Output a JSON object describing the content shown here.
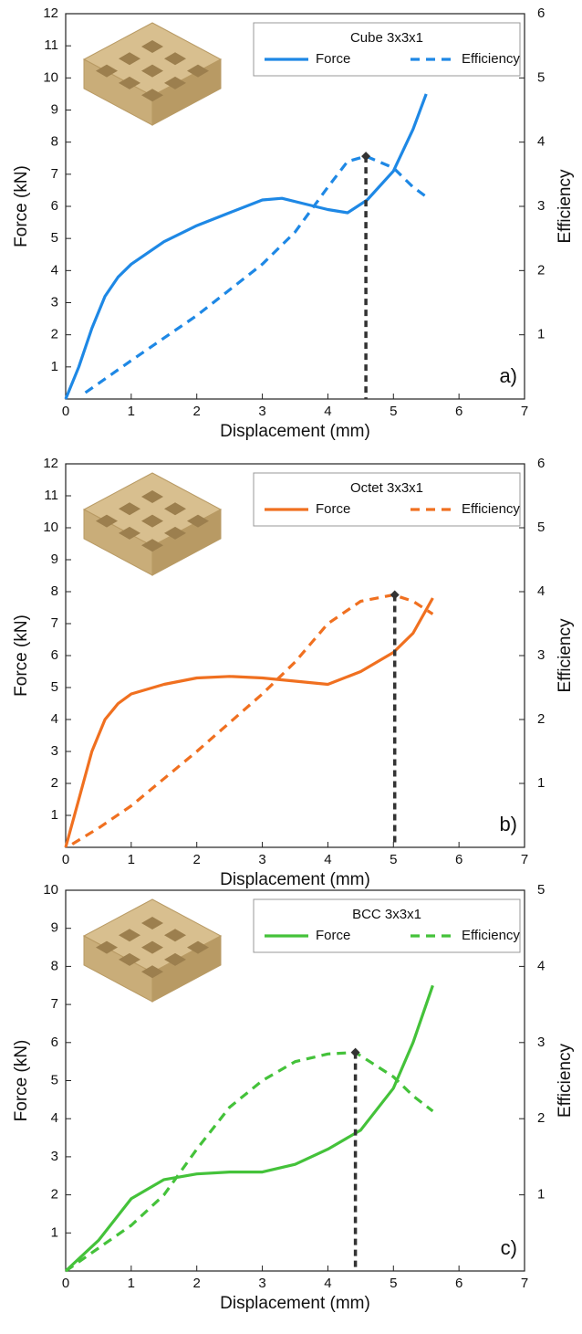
{
  "chart_data": [
    {
      "type": "line",
      "legend_title": "Cube 3x3x1",
      "label": "a)",
      "xlabel": "Displacement (mm)",
      "ylabel": "Force (kN)",
      "y2label": "Efficiency",
      "xlim": [
        0,
        7
      ],
      "xticks": [
        0,
        1,
        2,
        3,
        4,
        5,
        6,
        7
      ],
      "ylim": [
        0,
        12
      ],
      "yticks": [
        1,
        2,
        3,
        4,
        5,
        6,
        7,
        8,
        9,
        10,
        11,
        12
      ],
      "y2lim": [
        0,
        6
      ],
      "y2ticks": [
        1,
        2,
        3,
        4,
        5,
        6
      ],
      "series": [
        {
          "name": "Force",
          "color": "#1e88e5",
          "x": [
            0,
            0.2,
            0.4,
            0.6,
            0.8,
            1,
            1.5,
            2,
            2.5,
            3,
            3.3,
            3.6,
            4,
            4.3,
            4.6,
            5,
            5.3,
            5.5
          ],
          "values": [
            0,
            1,
            2.2,
            3.2,
            3.8,
            4.2,
            4.9,
            5.4,
            5.8,
            6.2,
            6.25,
            6.1,
            5.9,
            5.8,
            6.2,
            7.1,
            8.4,
            9.5
          ]
        },
        {
          "name": "Efficiency",
          "color": "#1e88e5",
          "axis": "y2",
          "dashed": true,
          "x": [
            0.3,
            1,
            2,
            3,
            3.5,
            4,
            4.3,
            4.58,
            5,
            5.3,
            5.5
          ],
          "values": [
            0.1,
            0.6,
            1.3,
            2.1,
            2.6,
            3.3,
            3.7,
            3.78,
            3.6,
            3.3,
            3.15
          ]
        }
      ],
      "markers": [
        {
          "x": 4.58,
          "y": 3.78,
          "axis": "y2",
          "color": "#333333"
        }
      ]
    },
    {
      "type": "line",
      "legend_title": "Octet 3x3x1",
      "label": "b)",
      "xlabel": "Displacement (mm)",
      "ylabel": "Force (kN)",
      "y2label": "Efficiency",
      "xlim": [
        0,
        7
      ],
      "xticks": [
        0,
        1,
        2,
        3,
        4,
        5,
        6,
        7
      ],
      "ylim": [
        0,
        12
      ],
      "yticks": [
        1,
        2,
        3,
        4,
        5,
        6,
        7,
        8,
        9,
        10,
        11,
        12
      ],
      "y2lim": [
        0,
        6
      ],
      "y2ticks": [
        1,
        2,
        3,
        4,
        5,
        6
      ],
      "series": [
        {
          "name": "Force",
          "color": "#f07020",
          "x": [
            0,
            0.2,
            0.4,
            0.6,
            0.8,
            1,
            1.5,
            2,
            2.5,
            3,
            3.5,
            4,
            4.5,
            5,
            5.3,
            5.6
          ],
          "values": [
            0,
            1.5,
            3,
            4,
            4.5,
            4.8,
            5.1,
            5.3,
            5.35,
            5.3,
            5.2,
            5.1,
            5.5,
            6.1,
            6.7,
            7.8
          ]
        },
        {
          "name": "Efficiency",
          "color": "#f07020",
          "axis": "y2",
          "dashed": true,
          "x": [
            0.1,
            0.5,
            1,
            2,
            3,
            3.5,
            4,
            4.5,
            5,
            5.3,
            5.6
          ],
          "values": [
            0.05,
            0.3,
            0.65,
            1.5,
            2.4,
            2.9,
            3.5,
            3.85,
            3.95,
            3.85,
            3.65
          ]
        }
      ],
      "markers": [
        {
          "x": 5.02,
          "y": 3.95,
          "axis": "y2",
          "color": "#333333"
        }
      ]
    },
    {
      "type": "line",
      "legend_title": "BCC 3x3x1",
      "label": "c)",
      "xlabel": "Displacement (mm)",
      "ylabel": "Force (kN)",
      "y2label": "Efficiency",
      "xlim": [
        0,
        7
      ],
      "xticks": [
        0,
        1,
        2,
        3,
        4,
        5,
        6,
        7
      ],
      "ylim": [
        0,
        10
      ],
      "yticks": [
        1,
        2,
        3,
        4,
        5,
        6,
        7,
        8,
        9,
        10
      ],
      "y2lim": [
        0,
        5
      ],
      "y2ticks": [
        1,
        2,
        3,
        4,
        5
      ],
      "series": [
        {
          "name": "Force",
          "color": "#44c23a",
          "x": [
            0,
            0.5,
            1,
            1.5,
            2,
            2.5,
            3,
            3.5,
            4,
            4.5,
            5,
            5.3,
            5.6
          ],
          "values": [
            0,
            0.8,
            1.9,
            2.4,
            2.55,
            2.6,
            2.6,
            2.8,
            3.2,
            3.7,
            4.8,
            6,
            7.5
          ]
        },
        {
          "name": "Efficiency",
          "color": "#44c23a",
          "axis": "y2",
          "dashed": true,
          "x": [
            0,
            0.5,
            1,
            1.5,
            2,
            2.5,
            3,
            3.5,
            4,
            4.42,
            5,
            5.3,
            5.6
          ],
          "values": [
            0,
            0.3,
            0.6,
            1,
            1.6,
            2.15,
            2.5,
            2.75,
            2.85,
            2.87,
            2.55,
            2.3,
            2.1
          ]
        }
      ],
      "markers": [
        {
          "x": 4.42,
          "y": 2.87,
          "axis": "y2",
          "color": "#333333"
        }
      ]
    }
  ]
}
